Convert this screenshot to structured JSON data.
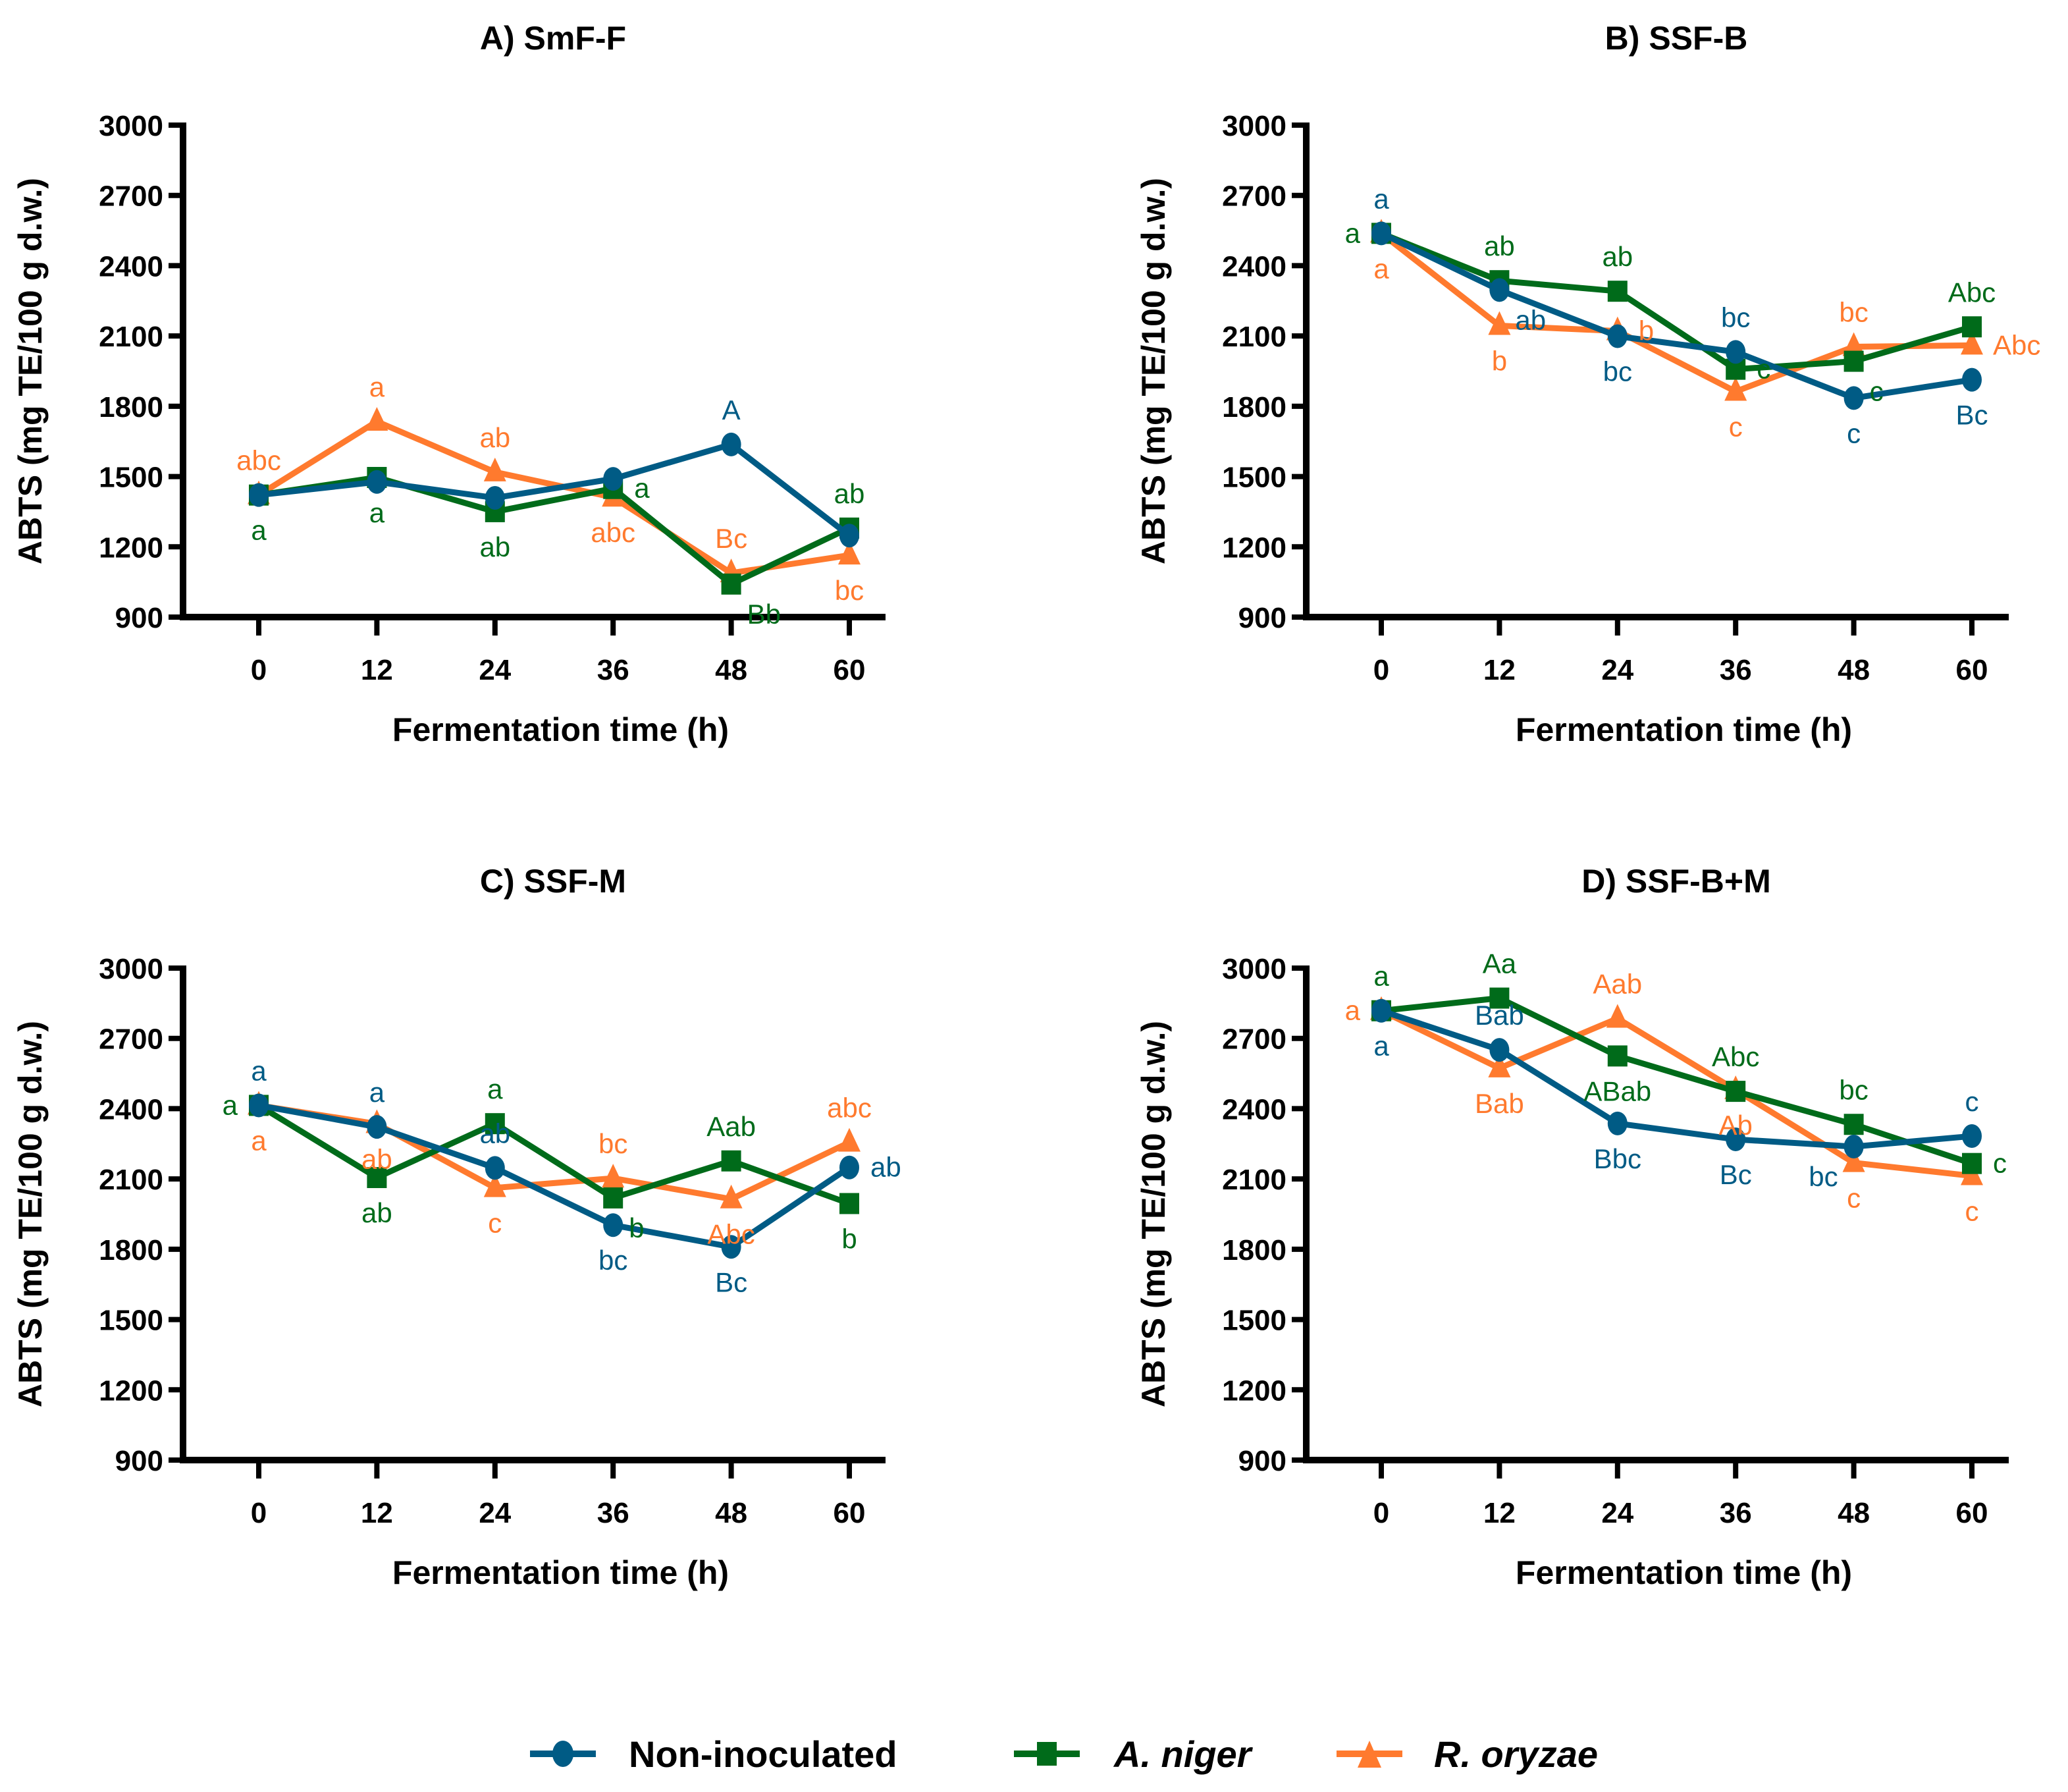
{
  "legend": [
    {
      "name": "Non-inoculated",
      "italic": false
    },
    {
      "name": "A. niger",
      "italic": true
    },
    {
      "name": "R. oryzae",
      "italic": true
    }
  ],
  "series_styles": [
    {
      "name": "Non-inoculated",
      "color": "#005B85",
      "marker": "circle"
    },
    {
      "name": "A. niger",
      "color": "#006B1A",
      "marker": "square"
    },
    {
      "name": "R. oryzae",
      "color": "#FF7A2E",
      "marker": "triangle"
    }
  ],
  "chart_data": [
    {
      "type": "line",
      "title": "A) SmF-F",
      "xlabel": "Fermentation time (h)",
      "ylabel": "ABTS (mg TE/100 g d.w.)",
      "x": [
        0,
        12,
        24,
        36,
        48,
        60
      ],
      "ylim": [
        900,
        3000
      ],
      "yticks": [
        900,
        1200,
        1500,
        1800,
        2100,
        2400,
        2700,
        3000
      ],
      "series": [
        {
          "name": "Non-inoculated",
          "values": [
            1421,
            1477,
            1409,
            1490,
            1637,
            1248
          ],
          "labels": [
            {
              "text": "",
              "pos": "below"
            },
            {
              "text": "",
              "pos": "below"
            },
            {
              "text": "",
              "pos": "below"
            },
            {
              "text": "",
              "pos": "above"
            },
            {
              "text": "A",
              "pos": "above"
            },
            {
              "text": "",
              "pos": "above"
            }
          ]
        },
        {
          "name": "A. niger",
          "values": [
            1421,
            1496,
            1350,
            1449,
            1041,
            1280
          ],
          "labels": [
            {
              "text": "a",
              "pos": "below"
            },
            {
              "text": "a",
              "pos": "below"
            },
            {
              "text": "ab",
              "pos": "below"
            },
            {
              "text": "a",
              "pos": "right"
            },
            {
              "text": "Bb",
              "pos": "below-right"
            },
            {
              "text": "ab",
              "pos": "above"
            }
          ]
        },
        {
          "name": "R. oryzae",
          "values": [
            1421,
            1735,
            1519,
            1411,
            1088,
            1164
          ],
          "labels": [
            {
              "text": "abc",
              "pos": "above"
            },
            {
              "text": "a",
              "pos": "above"
            },
            {
              "text": "ab",
              "pos": "above"
            },
            {
              "text": "abc",
              "pos": "below"
            },
            {
              "text": "Bc",
              "pos": "above"
            },
            {
              "text": "bc",
              "pos": "below"
            }
          ]
        }
      ]
    },
    {
      "type": "line",
      "title": "B) SSF-B",
      "xlabel": "Fermentation time (h)",
      "ylabel": "ABTS (mg TE/100 g d.w.)",
      "x": [
        0,
        12,
        24,
        36,
        48,
        60
      ],
      "ylim": [
        900,
        3000
      ],
      "yticks": [
        900,
        1200,
        1500,
        1800,
        2100,
        2400,
        2700,
        3000
      ],
      "series": [
        {
          "name": "Non-inoculated",
          "values": [
            2538,
            2296,
            2099,
            2032,
            1835,
            1913
          ],
          "labels": [
            {
              "text": "a",
              "pos": "above"
            },
            {
              "text": "ab",
              "pos": "below-right"
            },
            {
              "text": "bc",
              "pos": "below"
            },
            {
              "text": "bc",
              "pos": "above"
            },
            {
              "text": "c",
              "pos": "below"
            },
            {
              "text": "Bc",
              "pos": "below"
            }
          ]
        },
        {
          "name": "A. niger",
          "values": [
            2538,
            2336,
            2291,
            1958,
            1992,
            2139
          ],
          "labels": [
            {
              "text": "a",
              "pos": "left"
            },
            {
              "text": "ab",
              "pos": "above"
            },
            {
              "text": "ab",
              "pos": "above"
            },
            {
              "text": "c",
              "pos": "right"
            },
            {
              "text": "c",
              "pos": "below-right"
            },
            {
              "text": "Abc",
              "pos": "above"
            }
          ]
        },
        {
          "name": "R. oryzae",
          "values": [
            2538,
            2144,
            2121,
            1863,
            2054,
            2060
          ],
          "labels": [
            {
              "text": "a",
              "pos": "below"
            },
            {
              "text": "b",
              "pos": "below"
            },
            {
              "text": "b",
              "pos": "right"
            },
            {
              "text": "c",
              "pos": "below"
            },
            {
              "text": "bc",
              "pos": "above"
            },
            {
              "text": "Abc",
              "pos": "right"
            }
          ]
        }
      ]
    },
    {
      "type": "line",
      "title": "C) SSF-M",
      "xlabel": "Fermentation time (h)",
      "ylabel": "ABTS (mg TE/100 g d.w.)",
      "x": [
        0,
        12,
        24,
        36,
        48,
        60
      ],
      "ylim": [
        900,
        3000
      ],
      "yticks": [
        900,
        1200,
        1500,
        1800,
        2100,
        2400,
        2700,
        3000
      ],
      "series": [
        {
          "name": "Non-inoculated",
          "values": [
            2414,
            2322,
            2147,
            1903,
            1810,
            2149
          ],
          "labels": [
            {
              "text": "a",
              "pos": "above"
            },
            {
              "text": "a",
              "pos": "above"
            },
            {
              "text": "ab",
              "pos": "above"
            },
            {
              "text": "bc",
              "pos": "below"
            },
            {
              "text": "Bc",
              "pos": "below"
            },
            {
              "text": "ab",
              "pos": "right"
            }
          ]
        },
        {
          "name": "A. niger",
          "values": [
            2414,
            2106,
            2336,
            2019,
            2177,
            1995
          ],
          "labels": [
            {
              "text": "a",
              "pos": "left"
            },
            {
              "text": "ab",
              "pos": "below"
            },
            {
              "text": "a",
              "pos": "above"
            },
            {
              "text": "b",
              "pos": "below-right"
            },
            {
              "text": "Aab",
              "pos": "above"
            },
            {
              "text": "b",
              "pos": "below"
            }
          ]
        },
        {
          "name": "R. oryzae",
          "values": [
            2414,
            2335,
            2062,
            2103,
            2014,
            2256
          ],
          "labels": [
            {
              "text": "a",
              "pos": "below"
            },
            {
              "text": "ab",
              "pos": "below"
            },
            {
              "text": "c",
              "pos": "below"
            },
            {
              "text": "bc",
              "pos": "above"
            },
            {
              "text": "Abc",
              "pos": "below"
            },
            {
              "text": "abc",
              "pos": "above"
            }
          ]
        }
      ]
    },
    {
      "type": "line",
      "title": "D) SSF-B+M",
      "xlabel": "Fermentation time (h)",
      "ylabel": "ABTS (mg TE/100 g d.w.)",
      "x": [
        0,
        12,
        24,
        36,
        48,
        60
      ],
      "ylim": [
        900,
        3000
      ],
      "yticks": [
        900,
        1200,
        1500,
        1800,
        2100,
        2400,
        2700,
        3000
      ],
      "series": [
        {
          "name": "Non-inoculated",
          "values": [
            2818,
            2651,
            2337,
            2269,
            2238,
            2283
          ],
          "labels": [
            {
              "text": "a",
              "pos": "below"
            },
            {
              "text": "Bab",
              "pos": "above"
            },
            {
              "text": "Bbc",
              "pos": "below"
            },
            {
              "text": "Bc",
              "pos": "below"
            },
            {
              "text": "bc",
              "pos": "below-left"
            },
            {
              "text": "c",
              "pos": "above"
            }
          ]
        },
        {
          "name": "A. niger",
          "values": [
            2818,
            2872,
            2625,
            2474,
            2333,
            2166
          ],
          "labels": [
            {
              "text": "a",
              "pos": "above"
            },
            {
              "text": "Aa",
              "pos": "above"
            },
            {
              "text": "ABab",
              "pos": "below"
            },
            {
              "text": "Abc",
              "pos": "above"
            },
            {
              "text": "bc",
              "pos": "above"
            },
            {
              "text": "c",
              "pos": "right"
            }
          ]
        },
        {
          "name": "R. oryzae",
          "values": [
            2818,
            2573,
            2785,
            2480,
            2169,
            2113
          ],
          "labels": [
            {
              "text": "a",
              "pos": "left"
            },
            {
              "text": "Bab",
              "pos": "below"
            },
            {
              "text": "Aab",
              "pos": "above"
            },
            {
              "text": "Ab",
              "pos": "below"
            },
            {
              "text": "c",
              "pos": "below"
            },
            {
              "text": "c",
              "pos": "below"
            }
          ]
        }
      ]
    }
  ]
}
